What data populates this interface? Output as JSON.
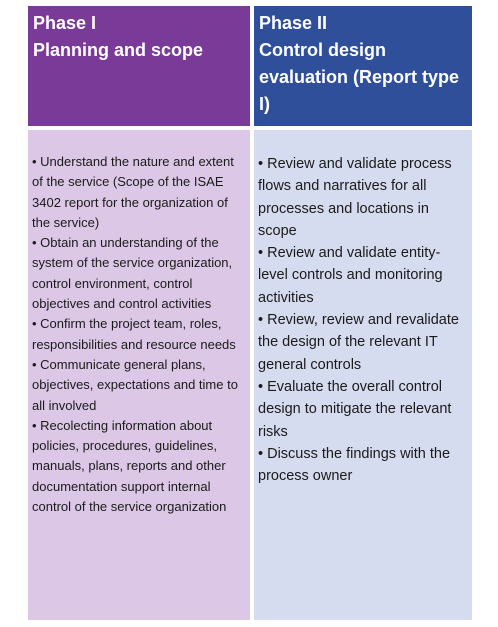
{
  "phase1": {
    "title_line1": "Phase I",
    "title_line2": "Planning and scope",
    "bullets": [
      "• Understand the nature and extent of the service (Scope of the ISAE 3402 report for the organization of the service)",
      "• Obtain an understanding of the system of the service organization, control environment, control objectives and control activities",
      "• Confirm the project team, roles, responsibilities and resource needs",
      "• Communicate general plans, objectives, expectations and time to all involved",
      "• Recolecting information about policies, procedures, guidelines, manuals, plans, reports and other documentation support internal control of the service organization"
    ]
  },
  "phase2": {
    "title_line1": "Phase II",
    "title_line2": "Control design evaluation (Report type I)",
    "bullets": [
      "• Review and validate process flows and narratives for all processes and locations in scope",
      "• Review and validate entity-level controls and monitoring activities",
      "• Review, review and revalidate the design of the relevant IT general controls",
      "• Evaluate the overall control design to mitigate the relevant risks",
      "• Discuss the findings with the process owner"
    ]
  },
  "colors": {
    "phase1_header": "#7a3a97",
    "phase1_body": "#dcc8e6",
    "phase2_header": "#2f4f9a",
    "phase2_body": "#d6dcef"
  }
}
